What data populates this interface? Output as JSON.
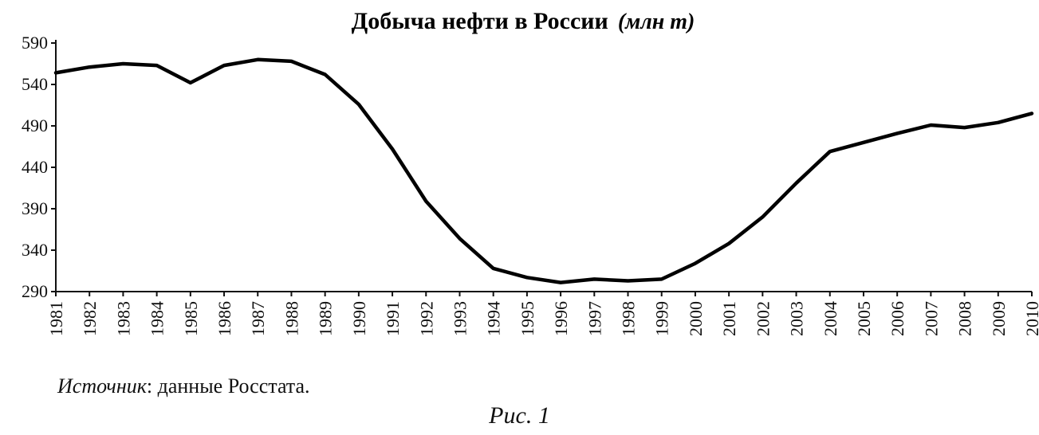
{
  "chart_data": {
    "type": "line",
    "title": "Добыча нефти в России",
    "title_unit": "(млн т)",
    "xlabel": "",
    "ylabel": "",
    "x": [
      "1981",
      "1982",
      "1983",
      "1984",
      "1985",
      "1986",
      "1987",
      "1988",
      "1989",
      "1990",
      "1991",
      "1992",
      "1993",
      "1994",
      "1995",
      "1996",
      "1997",
      "1998",
      "1999",
      "2000",
      "2001",
      "2002",
      "2003",
      "2004",
      "2005",
      "2006",
      "2007",
      "2008",
      "2009",
      "2010"
    ],
    "series": [
      {
        "values": [
          554,
          561,
          565,
          563,
          542,
          563,
          570,
          568,
          552,
          516,
          462,
          399,
          354,
          318,
          307,
          301,
          305,
          303,
          305,
          324,
          348,
          380,
          421,
          459,
          470,
          481,
          491,
          488,
          494,
          505
        ]
      }
    ],
    "ylim": [
      290,
      590
    ],
    "yticks": [
      "590",
      "540",
      "490",
      "440",
      "390",
      "340",
      "290"
    ],
    "grid": false,
    "line_color": "#000000"
  },
  "footer": {
    "source_label": "Источник",
    "source_text": ": данные Росстата.",
    "figure_label": "Рис. 1"
  }
}
